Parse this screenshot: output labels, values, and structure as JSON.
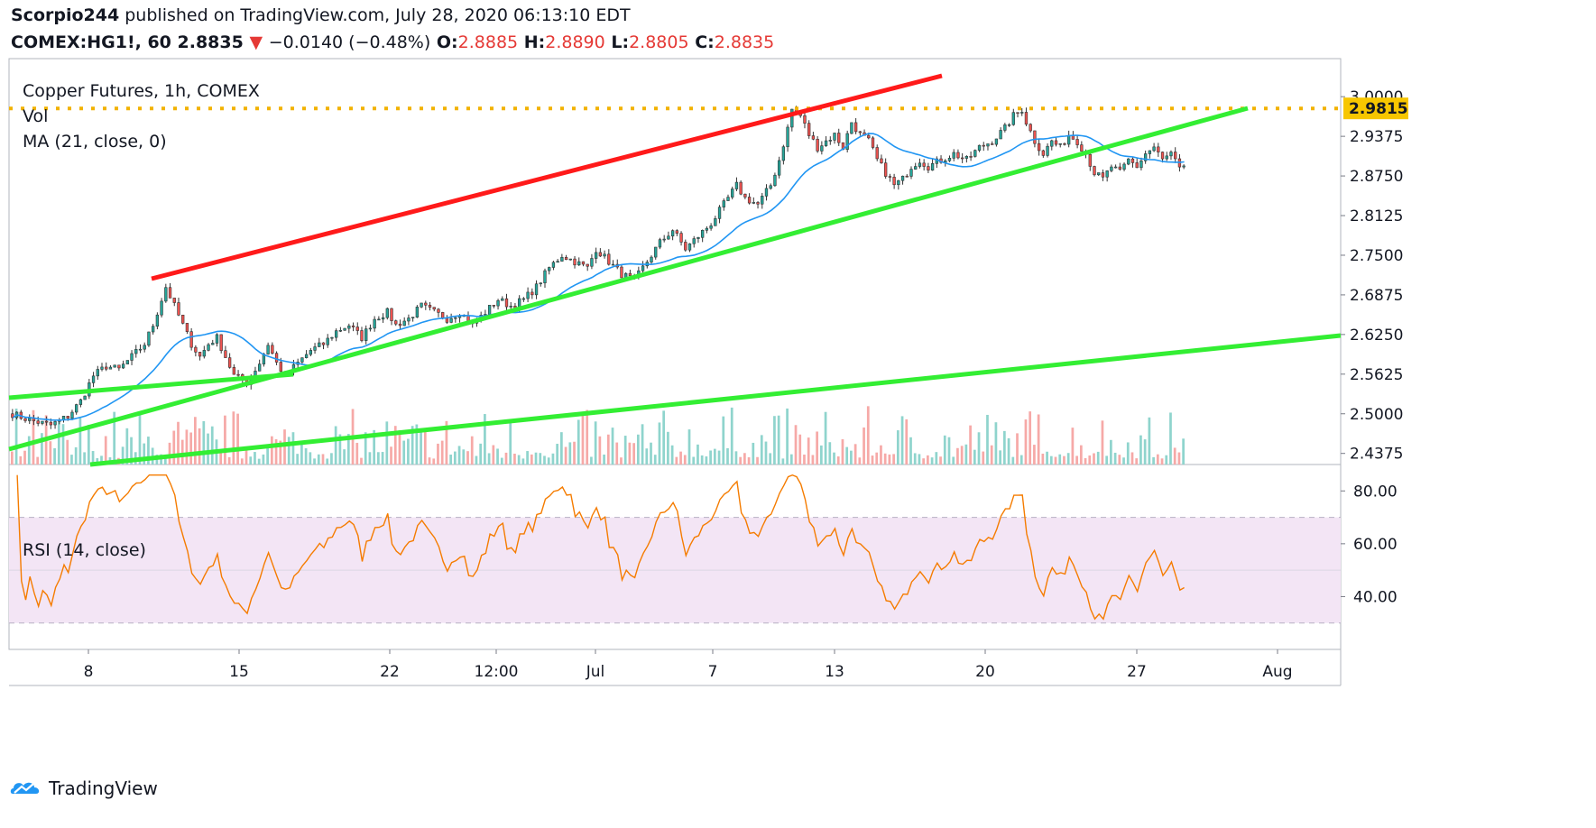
{
  "header": {
    "publisher_line_user": "Scorpio244",
    "publisher_line_rest": "published on TradingView.com, July 28, 2020 06:13:10 EDT",
    "symbol": "COMEX:HG1!, 60",
    "last": "2.8835",
    "change": "−0.0140 (−0.48%)",
    "open_label": "O:",
    "open": "2.8885",
    "high_label": "H:",
    "high": "2.8890",
    "low_label": "L:",
    "low": "2.8805",
    "close_label": "C:",
    "close": "2.8835"
  },
  "legend": {
    "title": "Copper Futures, 1h, COMEX",
    "vol": "Vol",
    "ma": "MA (21, close, 0)",
    "rsi": "RSI (14, close)"
  },
  "footer": {
    "brand": "TradingView"
  },
  "colors": {
    "candle_up": "#26a69a",
    "candle_down": "#ef5350",
    "ma": "#2196f3",
    "rsi_line": "#f57c00",
    "rsi_band": "#f3e5f5",
    "red_trend": "#ff1a1a",
    "green_trend": "#33ee33",
    "level": "#f2b200",
    "price_tag": "#f7c600"
  },
  "chart_data": {
    "type": "candlestick",
    "price_axis": {
      "ticks": [
        "3.0000",
        "2.9375",
        "2.8750",
        "2.8125",
        "2.7500",
        "2.6875",
        "2.6250",
        "2.5625",
        "2.5000",
        "2.4375"
      ],
      "range": [
        2.42,
        3.06
      ]
    },
    "time_axis": {
      "ticks": [
        "8",
        "15",
        "22",
        "12:00",
        "Jul",
        "7",
        "13",
        "20",
        "27",
        "Aug"
      ]
    },
    "horizontal_level": {
      "value": 2.9815,
      "label": "2.9815"
    },
    "price_path": [
      [
        0,
        2.5
      ],
      [
        4,
        2.49
      ],
      [
        9,
        2.482
      ],
      [
        13,
        2.496
      ],
      [
        16,
        2.52
      ],
      [
        19,
        2.56
      ],
      [
        22,
        2.575
      ],
      [
        25,
        2.57
      ],
      [
        28,
        2.59
      ],
      [
        31,
        2.61
      ],
      [
        33,
        2.64
      ],
      [
        35,
        2.68
      ],
      [
        36,
        2.7
      ],
      [
        38,
        2.67
      ],
      [
        40,
        2.64
      ],
      [
        42,
        2.61
      ],
      [
        44,
        2.59
      ],
      [
        46,
        2.61
      ],
      [
        48,
        2.62
      ],
      [
        50,
        2.59
      ],
      [
        52,
        2.56
      ],
      [
        55,
        2.55
      ],
      [
        58,
        2.58
      ],
      [
        60,
        2.61
      ],
      [
        62,
        2.58
      ],
      [
        64,
        2.56
      ],
      [
        67,
        2.58
      ],
      [
        70,
        2.6
      ],
      [
        73,
        2.61
      ],
      [
        76,
        2.63
      ],
      [
        79,
        2.64
      ],
      [
        82,
        2.62
      ],
      [
        85,
        2.65
      ],
      [
        88,
        2.66
      ],
      [
        90,
        2.64
      ],
      [
        93,
        2.65
      ],
      [
        96,
        2.67
      ],
      [
        99,
        2.66
      ],
      [
        102,
        2.65
      ],
      [
        105,
        2.66
      ],
      [
        108,
        2.64
      ],
      [
        111,
        2.66
      ],
      [
        114,
        2.68
      ],
      [
        117,
        2.67
      ],
      [
        120,
        2.68
      ],
      [
        123,
        2.7
      ],
      [
        126,
        2.73
      ],
      [
        129,
        2.75
      ],
      [
        132,
        2.74
      ],
      [
        135,
        2.73
      ],
      [
        137,
        2.76
      ],
      [
        140,
        2.74
      ],
      [
        143,
        2.72
      ],
      [
        146,
        2.71
      ],
      [
        149,
        2.74
      ],
      [
        152,
        2.77
      ],
      [
        155,
        2.79
      ],
      [
        158,
        2.76
      ],
      [
        161,
        2.78
      ],
      [
        164,
        2.8
      ],
      [
        167,
        2.83
      ],
      [
        170,
        2.86
      ],
      [
        172,
        2.84
      ],
      [
        175,
        2.83
      ],
      [
        178,
        2.86
      ],
      [
        180,
        2.9
      ],
      [
        182,
        2.95
      ],
      [
        183,
        2.98
      ],
      [
        185,
        2.97
      ],
      [
        187,
        2.94
      ],
      [
        189,
        2.92
      ],
      [
        191,
        2.93
      ],
      [
        193,
        2.94
      ],
      [
        195,
        2.92
      ],
      [
        197,
        2.96
      ],
      [
        199,
        2.94
      ],
      [
        201,
        2.93
      ],
      [
        203,
        2.9
      ],
      [
        205,
        2.88
      ],
      [
        207,
        2.86
      ],
      [
        209,
        2.87
      ],
      [
        211,
        2.89
      ],
      [
        213,
        2.9
      ],
      [
        215,
        2.89
      ],
      [
        218,
        2.9
      ],
      [
        221,
        2.91
      ],
      [
        224,
        2.9
      ],
      [
        227,
        2.92
      ],
      [
        230,
        2.93
      ],
      [
        233,
        2.95
      ],
      [
        235,
        2.97
      ],
      [
        237,
        2.98
      ],
      [
        238,
        2.96
      ],
      [
        240,
        2.93
      ],
      [
        242,
        2.91
      ],
      [
        244,
        2.93
      ],
      [
        246,
        2.92
      ],
      [
        248,
        2.94
      ],
      [
        250,
        2.93
      ],
      [
        252,
        2.91
      ],
      [
        254,
        2.88
      ],
      [
        256,
        2.87
      ],
      [
        258,
        2.89
      ],
      [
        260,
        2.88
      ],
      [
        262,
        2.9
      ],
      [
        264,
        2.89
      ],
      [
        266,
        2.91
      ],
      [
        268,
        2.92
      ],
      [
        270,
        2.9
      ],
      [
        272,
        2.91
      ],
      [
        274,
        2.885
      ]
    ],
    "ma_period": 21,
    "rsi_axis": {
      "ticks": [
        "80.00",
        "60.00",
        "40.00"
      ],
      "band": [
        30,
        70
      ],
      "range": [
        20,
        90
      ]
    }
  }
}
